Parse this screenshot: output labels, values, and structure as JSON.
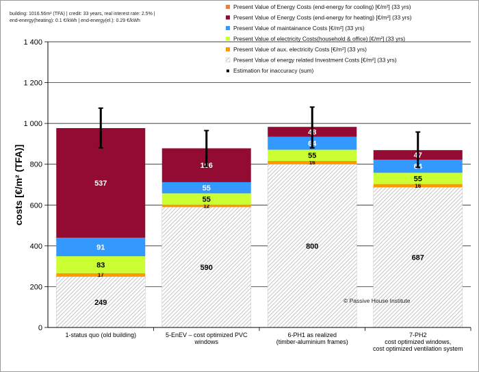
{
  "info": {
    "line1": "building: 1016.56m² (TFA) | credit: 33 years,  real interest rate: 2.5%  |",
    "line2": "end-energy(heating):  0.1 €/kWh  |  end-energy(el.):  0.29 €/kWh"
  },
  "copyright": "© Passive House  Institute",
  "colors": {
    "cooling": "#e8823a",
    "heating": "#930a33",
    "maintenance": "#3399ff",
    "electricity": "#ccff33",
    "aux": "#ff9900",
    "investment": "#d4d4d4",
    "accuracy": "#000000"
  },
  "chart_data": {
    "type": "bar",
    "stacked": true,
    "ylabel": "costs [€/m² (TFA)]",
    "ylim": [
      0,
      1400
    ],
    "yticks": [
      "0",
      "200",
      "400",
      "600",
      "800",
      "1 000",
      "1 200",
      "1 400"
    ],
    "ytick_values": [
      0,
      200,
      400,
      600,
      800,
      1000,
      1200,
      1400
    ],
    "grid": true,
    "legend_position": "top",
    "categories": [
      [
        "1-status quo (old building)"
      ],
      [
        "5-EnEV – cost optimized PVC",
        "windows"
      ],
      [
        "6-PH1 as realized",
        "(timber-aluminium frames)"
      ],
      [
        "7-PH2",
        "cost optimized windows,",
        "cost optimized ventilation system"
      ]
    ],
    "series": [
      {
        "name": "Present  Value  of energy related  Investment  Costs  [€/m²]   (33 yrs)",
        "key": "investment",
        "values": [
          249,
          590,
          800,
          687
        ],
        "label_color": "#000000"
      },
      {
        "name": "Present  Value  of aux. electricity   Costs  [€/m²]   (33 yrs)",
        "key": "aux",
        "values": [
          17,
          12,
          16,
          16
        ],
        "label_color": "#000000"
      },
      {
        "name": "Present  Value  of electricity   Costs(household & office)  [€/m²]   (33 yrs)",
        "key": "electricity",
        "values": [
          83,
          55,
          55,
          55
        ],
        "label_color": "#000000"
      },
      {
        "name": "Present  Value  of maintainance  Costs  [€/m²]   (33 yrs)",
        "key": "maintenance",
        "values": [
          91,
          55,
          64,
          64
        ],
        "label_color": "#ffffff"
      },
      {
        "name": "Present  Value  of Energy Costs  (end-energy  for heating)  [€/m²]   (33 yrs)",
        "key": "heating",
        "values": [
          537,
          166,
          48,
          47
        ],
        "label_color": "#ffffff"
      },
      {
        "name": "Present  Value  of Energy Costs  (end-energy  for cooling)  [€/m²]   (33 yrs)",
        "key": "cooling",
        "values": [
          0,
          0,
          0,
          0
        ],
        "label_color": "#000000"
      }
    ],
    "error_bars": {
      "name": "Estimation for inaccuracy (sum)",
      "low": [
        880,
        790,
        880,
        785
      ],
      "high": [
        1075,
        965,
        1080,
        958
      ]
    },
    "legend_order": [
      "cooling",
      "heating",
      "maintenance",
      "electricity",
      "aux",
      "investment",
      "accuracy"
    ]
  }
}
